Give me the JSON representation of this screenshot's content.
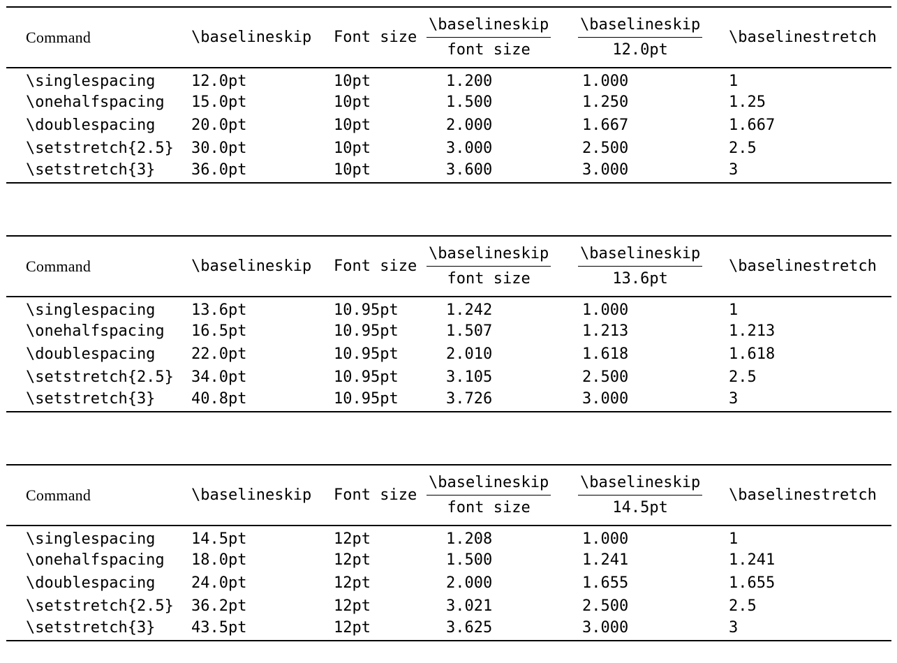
{
  "page": {
    "background": "#ffffff",
    "text_color": "#000000",
    "rule_color": "#000000"
  },
  "tables": [
    {
      "headers": {
        "command": "Command",
        "baselineskip": "\\baselineskip",
        "font_size": "Font size",
        "ratio_font": {
          "num": "\\baselineskip",
          "den": "font size"
        },
        "ratio_ref": {
          "num": "\\baselineskip",
          "den": "12.0pt"
        },
        "baselinestretch": "\\baselinestretch"
      },
      "rows": [
        [
          "\\singlespacing",
          "12.0pt",
          "10pt",
          "1.200",
          "1.000",
          "1"
        ],
        [
          "\\onehalfspacing",
          "15.0pt",
          "10pt",
          "1.500",
          "1.250",
          "1.25"
        ],
        [
          "\\doublespacing",
          "20.0pt",
          "10pt",
          "2.000",
          "1.667",
          "1.667"
        ],
        [
          "\\setstretch{2.5}",
          "30.0pt",
          "10pt",
          "3.000",
          "2.500",
          "2.5"
        ],
        [
          "\\setstretch{3}",
          "36.0pt",
          "10pt",
          "3.600",
          "3.000",
          "3"
        ]
      ]
    },
    {
      "headers": {
        "command": "Command",
        "baselineskip": "\\baselineskip",
        "font_size": "Font size",
        "ratio_font": {
          "num": "\\baselineskip",
          "den": "font size"
        },
        "ratio_ref": {
          "num": "\\baselineskip",
          "den": "13.6pt"
        },
        "baselinestretch": "\\baselinestretch"
      },
      "rows": [
        [
          "\\singlespacing",
          "13.6pt",
          "10.95pt",
          "1.242",
          "1.000",
          "1"
        ],
        [
          "\\onehalfspacing",
          "16.5pt",
          "10.95pt",
          "1.507",
          "1.213",
          "1.213"
        ],
        [
          "\\doublespacing",
          "22.0pt",
          "10.95pt",
          "2.010",
          "1.618",
          "1.618"
        ],
        [
          "\\setstretch{2.5}",
          "34.0pt",
          "10.95pt",
          "3.105",
          "2.500",
          "2.5"
        ],
        [
          "\\setstretch{3}",
          "40.8pt",
          "10.95pt",
          "3.726",
          "3.000",
          "3"
        ]
      ]
    },
    {
      "headers": {
        "command": "Command",
        "baselineskip": "\\baselineskip",
        "font_size": "Font size",
        "ratio_font": {
          "num": "\\baselineskip",
          "den": "font size"
        },
        "ratio_ref": {
          "num": "\\baselineskip",
          "den": "14.5pt"
        },
        "baselinestretch": "\\baselinestretch"
      },
      "rows": [
        [
          "\\singlespacing",
          "14.5pt",
          "12pt",
          "1.208",
          "1.000",
          "1"
        ],
        [
          "\\onehalfspacing",
          "18.0pt",
          "12pt",
          "1.500",
          "1.241",
          "1.241"
        ],
        [
          "\\doublespacing",
          "24.0pt",
          "12pt",
          "2.000",
          "1.655",
          "1.655"
        ],
        [
          "\\setstretch{2.5}",
          "36.2pt",
          "12pt",
          "3.021",
          "2.500",
          "2.5"
        ],
        [
          "\\setstretch{3}",
          "43.5pt",
          "12pt",
          "3.625",
          "3.000",
          "3"
        ]
      ]
    }
  ]
}
